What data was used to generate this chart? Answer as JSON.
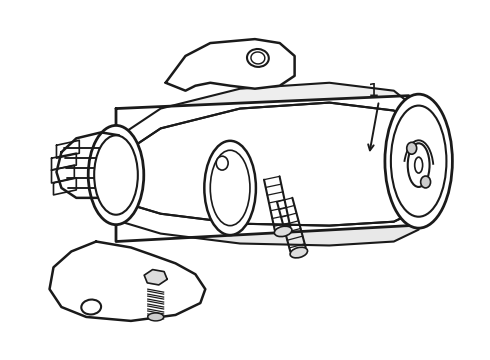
{
  "background_color": "#ffffff",
  "line_color": "#1a1a1a",
  "line_width": 1.5,
  "label_text": "1",
  "figsize": [
    4.9,
    3.6
  ],
  "dpi": 100
}
